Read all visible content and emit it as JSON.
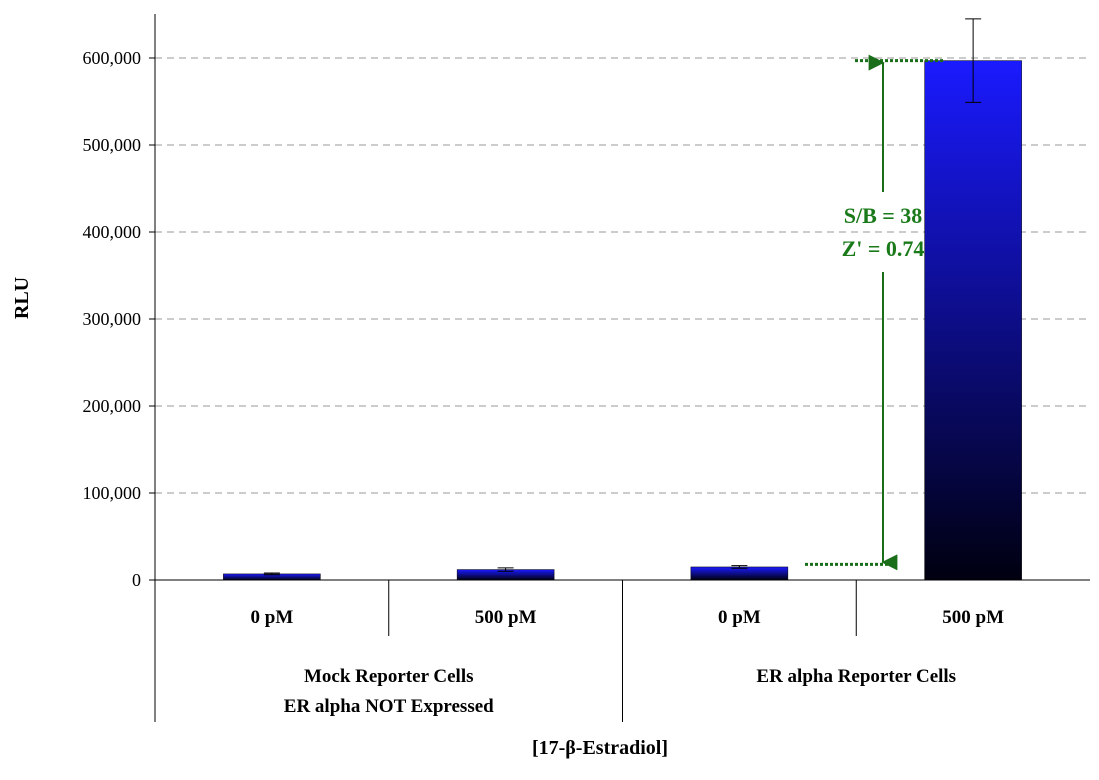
{
  "chart_data": {
    "type": "bar",
    "title": "",
    "ylabel": "RLU",
    "xlabel": "[17-β-Estradiol]",
    "ylim": [
      0,
      600000
    ],
    "yticks": [
      0,
      100000,
      200000,
      300000,
      400000,
      500000,
      600000
    ],
    "ytick_labels": [
      "0",
      "100,000",
      "200,000",
      "300,000",
      "400,000",
      "500,000",
      "600,000"
    ],
    "grid": "horizontal dashed",
    "categories": [
      "0 pM",
      "500 pM",
      "0 pM",
      "500 pM"
    ],
    "groups": [
      {
        "lines": [
          "Mock Reporter Cells",
          "ER alpha NOT Expressed"
        ],
        "span": [
          0,
          1
        ]
      },
      {
        "lines": [
          "ER alpha Reporter Cells"
        ],
        "span": [
          2,
          3
        ]
      }
    ],
    "values": [
      7000,
      12000,
      15000,
      597000
    ],
    "errors": [
      1000,
      2000,
      1500,
      48000
    ],
    "annotation": {
      "lines": [
        "S/B = 38",
        "Z' = 0.74"
      ],
      "from_value": 18000,
      "to_value": 597000
    },
    "colors": {
      "bar_top": "#1a1aff",
      "bar_bottom": "#000010",
      "annotation": "#1a7a1a",
      "grid": "#999999"
    }
  }
}
